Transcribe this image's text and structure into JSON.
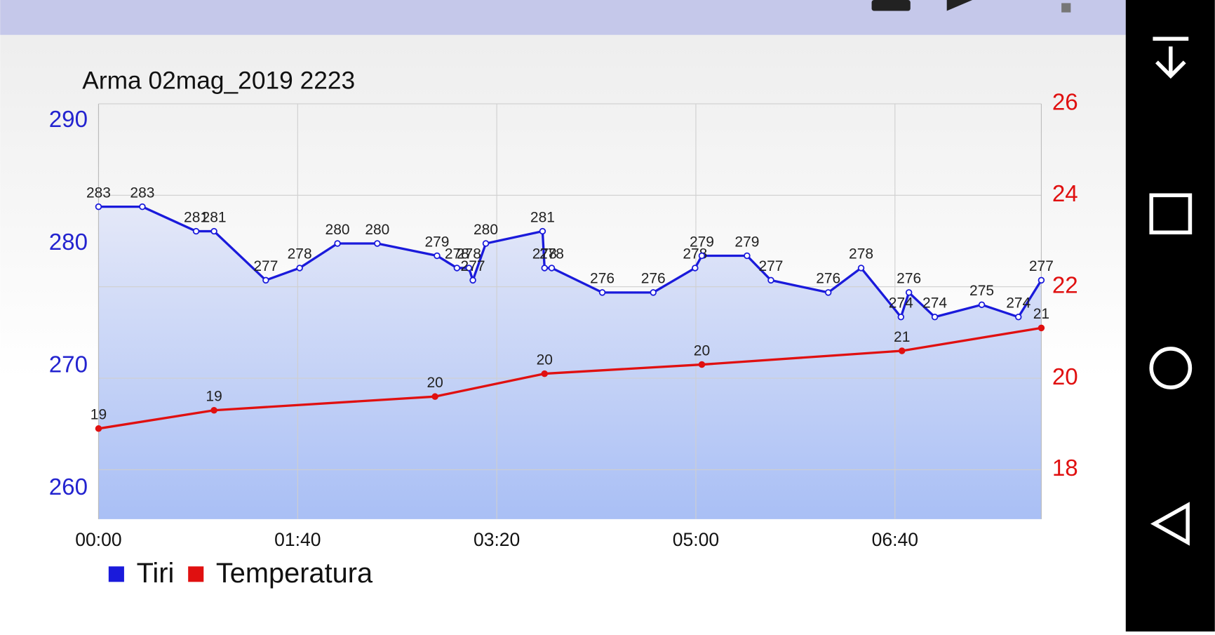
{
  "chart_data": {
    "type": "line",
    "title": "Arma  02mag_2019 2223",
    "xlim": [
      0,
      473.5
    ],
    "xticks": [
      {
        "value": 0,
        "label": "00:00"
      },
      {
        "value": 100,
        "label": "01:40"
      },
      {
        "value": 200,
        "label": "03:20"
      },
      {
        "value": 300,
        "label": "05:00"
      },
      {
        "value": 400,
        "label": "06:40"
      }
    ],
    "ylim": [
      257.5,
      291.4
    ],
    "yticks": [
      260,
      270,
      280,
      290
    ],
    "y2lim": [
      16.92,
      26
    ],
    "y2ticks": [
      18,
      20,
      22,
      24,
      26
    ],
    "grid": true,
    "legend": "bottom-left",
    "series": [
      {
        "name": "Tiri",
        "color": "#1a1adb",
        "x": [
          0,
          22,
          49,
          58,
          84,
          101,
          120,
          140,
          170,
          180,
          186,
          188,
          194.5,
          223,
          224,
          227.6,
          253,
          278.6,
          299.6,
          303,
          325.7,
          337.7,
          366.5,
          383,
          403,
          407,
          420,
          443.6,
          462,
          473.5
        ],
        "values": [
          283,
          283,
          281,
          281,
          277,
          278,
          280,
          280,
          279,
          278,
          278,
          277,
          280,
          281,
          278,
          278,
          276,
          276,
          278,
          279,
          279,
          277,
          276,
          278,
          274,
          276,
          274,
          275,
          274,
          277
        ]
      },
      {
        "name": "Temperatura",
        "color": "#e01010",
        "axis": "y2",
        "x": [
          0,
          58,
          169,
          224,
          303,
          403.5,
          473.5
        ],
        "values": [
          18.9,
          19.3,
          19.6,
          20.1,
          20.3,
          20.6,
          21.1
        ],
        "value_labels": [
          "19",
          "19",
          "20",
          "20",
          "20",
          "21",
          "21"
        ]
      }
    ]
  }
}
